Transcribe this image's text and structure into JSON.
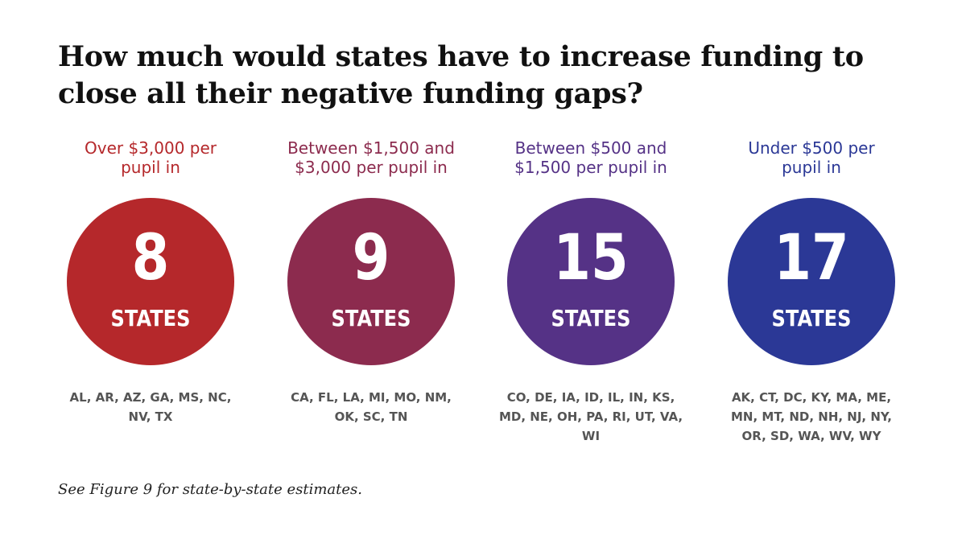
{
  "chart_data": {
    "type": "table",
    "title": "How much would states have to increase funding to close all their negative funding gaps?",
    "unit_label": "STATES",
    "categories": [
      {
        "label": "Over $3,000 per\npupil in",
        "count": "8",
        "states": "AL, AR, AZ, GA, MS, NC,\nNV, TX",
        "color": "#b5282b"
      },
      {
        "label": "Between $1,500 and\n$3,000 per pupil in",
        "count": "9",
        "states": "CA, FL, LA, MI, MO, NM,\nOK, SC, TN",
        "color": "#8c2b4e"
      },
      {
        "label": "Between $500 and\n$1,500 per pupil in",
        "count": "15",
        "states": "CO, DE, IA, ID, IL, IN, KS,\nMD, NE, OH, PA, RI, UT, VA,\nWI",
        "color": "#553286"
      },
      {
        "label": "Under $500 per\npupil in",
        "count": "17",
        "states": "AK, CT, DC, KY, MA, ME,\nMN, MT, ND, NH, NJ, NY,\nOR, SD, WA, WV, WY",
        "color": "#2b3896"
      }
    ],
    "note": "See Figure 9 for state-by-state estimates."
  }
}
